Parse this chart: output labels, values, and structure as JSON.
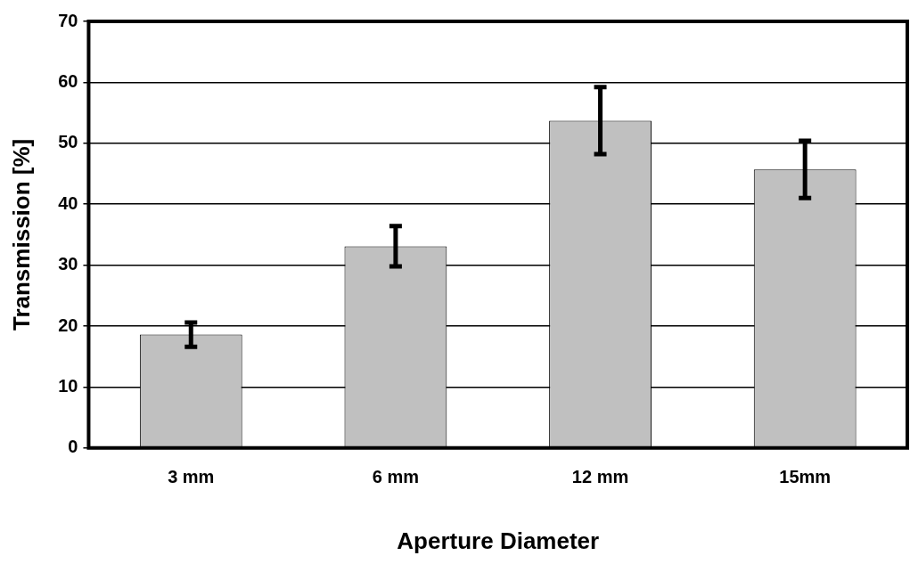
{
  "chart_data": {
    "type": "bar",
    "xlabel": "Aperture Diameter",
    "ylabel": "Transmission [%]",
    "categories": [
      "3 mm",
      "6 mm",
      "12 mm",
      "15mm"
    ],
    "values": [
      18.6,
      33.1,
      53.7,
      45.7
    ],
    "errors": [
      2.0,
      3.3,
      5.5,
      4.7
    ],
    "color": "#c0c0c0",
    "ylim": [
      0,
      70
    ],
    "yticks": [
      0,
      10,
      20,
      30,
      40,
      50,
      60,
      70
    ],
    "grid": "y",
    "legend": false
  }
}
